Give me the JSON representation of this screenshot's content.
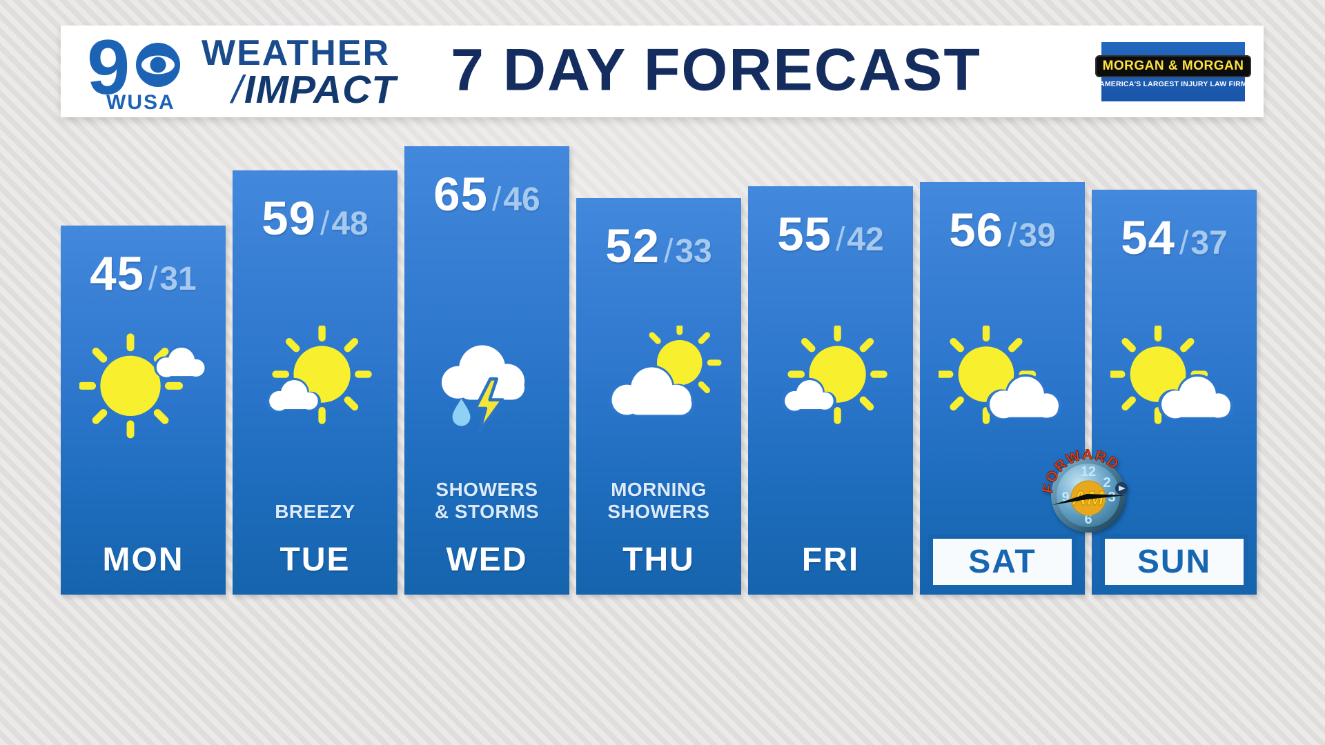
{
  "header": {
    "title": "7 DAY FORECAST",
    "logo": {
      "channel_number": "9",
      "callsign": "WUSA"
    },
    "brand": {
      "line1": "WEATHER",
      "slash": "/",
      "line2": "IMPACT"
    },
    "sponsor": {
      "name": "MORGAN & MORGAN",
      "tagline": "AMERICA'S LARGEST INJURY LAW FIRM"
    }
  },
  "days": [
    {
      "label": "MON",
      "high": 45,
      "low": 31,
      "separator": "/",
      "condition_lines": [],
      "icon": "sun-cloud-right",
      "weekend": false
    },
    {
      "label": "TUE",
      "high": 59,
      "low": 48,
      "separator": "/",
      "condition_lines": [
        "BREEZY"
      ],
      "icon": "sun-cloud-left",
      "weekend": false
    },
    {
      "label": "WED",
      "high": 65,
      "low": 46,
      "separator": "/",
      "condition_lines": [
        "SHOWERS",
        "& STORMS"
      ],
      "icon": "showers-storms",
      "weekend": false
    },
    {
      "label": "THU",
      "high": 52,
      "low": 33,
      "separator": "/",
      "condition_lines": [
        "MORNING",
        "SHOWERS"
      ],
      "icon": "sun-behind-cloud",
      "weekend": false
    },
    {
      "label": "FRI",
      "high": 55,
      "low": 42,
      "separator": "/",
      "condition_lines": [],
      "icon": "sun-cloud-left",
      "weekend": false
    },
    {
      "label": "SAT",
      "high": 56,
      "low": 39,
      "separator": "/",
      "condition_lines": [],
      "icon": "sun-cloud-lowright",
      "weekend": true
    },
    {
      "label": "SUN",
      "high": 54,
      "low": 37,
      "separator": "/",
      "condition_lines": [],
      "icon": "sun-cloud-lowright",
      "weekend": true
    }
  ],
  "forward_am_badge": {
    "arc_text": "FORWARD",
    "center_text": "AM",
    "numerals": [
      "12",
      "2",
      "3",
      "6",
      "9"
    ]
  },
  "colors": {
    "column_top": "#4388dc",
    "column_bottom": "#1664ad",
    "title_navy": "#142d5e",
    "high_temp": "#ffffff",
    "low_temp": "#a6c9f0",
    "condition_text": "#dcebfb",
    "weekend_box_blue": "#1564ad",
    "sun_yellow": "#f8ef2f",
    "rain_blue": "#8fd0f5",
    "sponsor_yellow": "#ffe23c",
    "sponsor_bg_blue": "#1e61b7"
  },
  "chart_data": {
    "type": "bar",
    "title": "7 DAY FORECAST",
    "categories": [
      "MON",
      "TUE",
      "WED",
      "THU",
      "FRI",
      "SAT",
      "SUN"
    ],
    "series": [
      {
        "name": "High",
        "values": [
          45,
          59,
          65,
          52,
          55,
          56,
          54
        ]
      },
      {
        "name": "Low",
        "values": [
          31,
          48,
          46,
          33,
          42,
          39,
          37
        ]
      }
    ],
    "annotations": [
      {
        "category": "TUE",
        "text": "BREEZY"
      },
      {
        "category": "WED",
        "text": "SHOWERS & STORMS"
      },
      {
        "category": "THU",
        "text": "MORNING SHOWERS"
      }
    ],
    "conditions_by_day": [
      "mostly sunny",
      "mostly sunny breezy",
      "showers and storms",
      "morning showers",
      "mostly sunny",
      "partly cloudy",
      "partly cloudy"
    ],
    "notes": "column heights scale with daily high temperature"
  }
}
